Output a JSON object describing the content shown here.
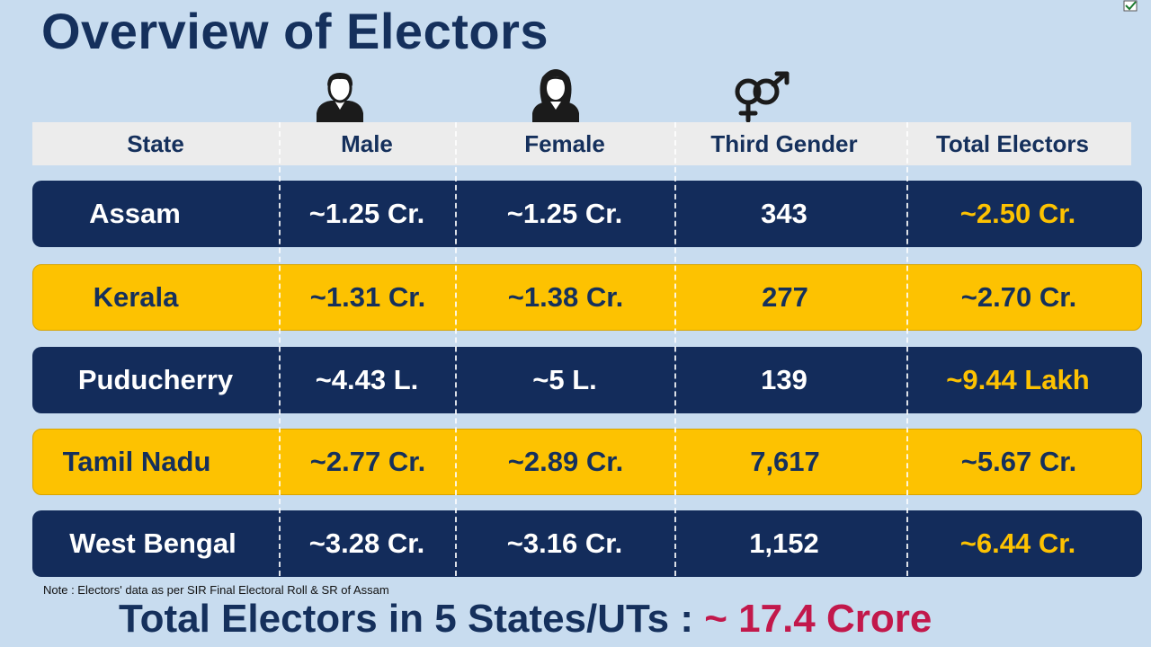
{
  "title": "Overview of Electors",
  "headers": {
    "state": "State",
    "male": "Male",
    "female": "Female",
    "third_gender": "Third Gender",
    "total": "Total Electors"
  },
  "icons": {
    "male": "male-person-icon",
    "female": "female-person-icon",
    "third_gender": "gender-symbol-icon",
    "logo": "election-commission-logo-icon"
  },
  "rows": [
    {
      "state": "Assam",
      "male": "~1.25 Cr.",
      "female": "~1.25 Cr.",
      "third": "343",
      "total": "~2.50 Cr."
    },
    {
      "state": "Kerala",
      "male": "~1.31 Cr.",
      "female": "~1.38 Cr.",
      "third": "277",
      "total": "~2.70 Cr."
    },
    {
      "state": "Puducherry",
      "male": "~4.43 L.",
      "female": "~5 L.",
      "third": "139",
      "total": "~9.44 Lakh"
    },
    {
      "state": "Tamil Nadu",
      "male": "~2.77 Cr.",
      "female": "~2.89 Cr.",
      "third": "7,617",
      "total": "~5.67 Cr."
    },
    {
      "state": "West Bengal",
      "male": "~3.28 Cr.",
      "female": "~3.16 Cr.",
      "third": "1,152",
      "total": "~6.44 Cr."
    }
  ],
  "note": "Note : Electors' data as per SIR Final Electoral Roll & SR of Assam",
  "footer": {
    "label": "Total Electors in 5 States/UTs : ",
    "value": "~ 17.4 Crore"
  },
  "colors": {
    "navy": "#132c5b",
    "gold": "#fdc201",
    "background": "#c8dcef",
    "accent": "#c2184b"
  }
}
